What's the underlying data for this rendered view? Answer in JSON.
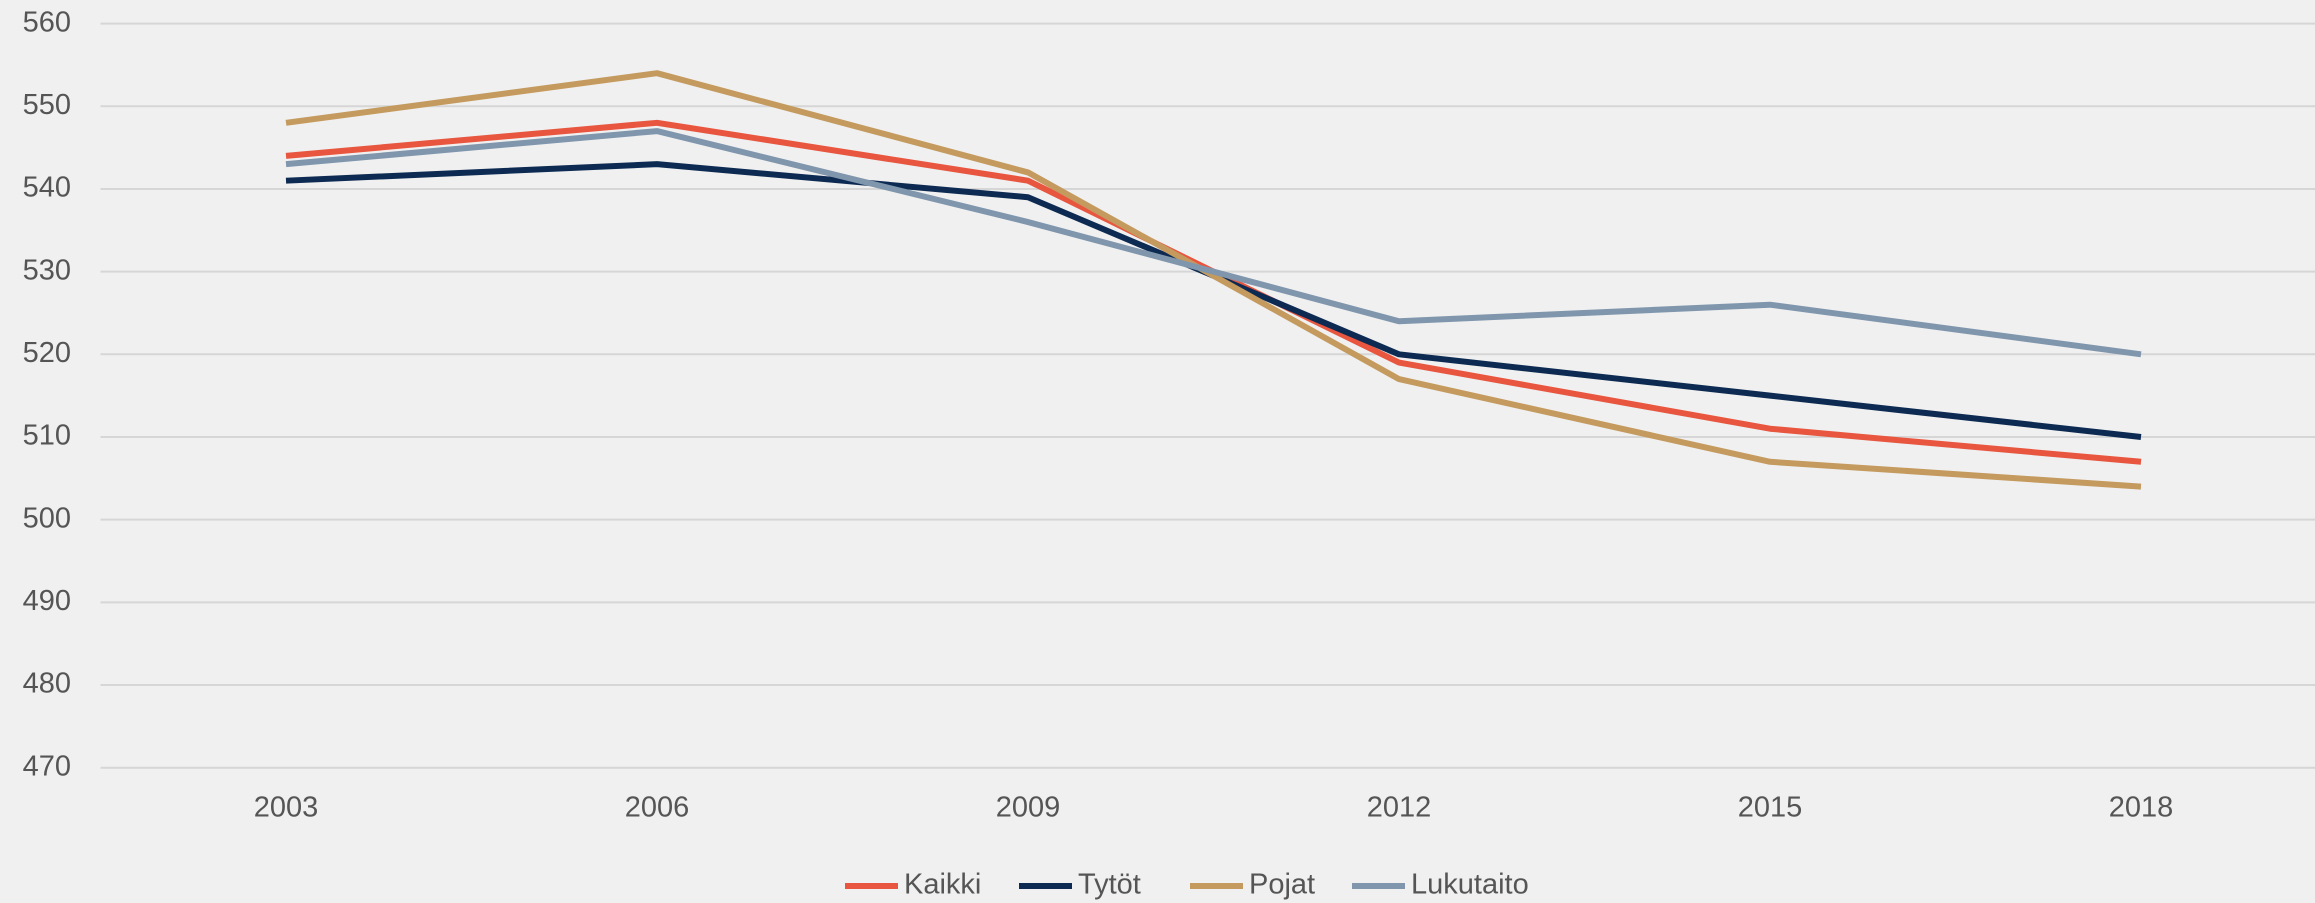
{
  "chart_data": {
    "type": "line",
    "categories": [
      "2003",
      "2006",
      "2009",
      "2012",
      "2015",
      "2018"
    ],
    "series": [
      {
        "name": "Kaikki",
        "color": "#e8563f",
        "values": [
          544,
          548,
          541,
          519,
          511,
          507
        ]
      },
      {
        "name": "Tytöt",
        "color": "#0d2b52",
        "values": [
          541,
          543,
          539,
          520,
          515,
          510
        ]
      },
      {
        "name": "Pojat",
        "color": "#c49a5e",
        "values": [
          548,
          554,
          542,
          517,
          507,
          504
        ]
      },
      {
        "name": "Lukutaito",
        "color": "#8096ad",
        "values": [
          543,
          547,
          536,
          524,
          526,
          520
        ]
      }
    ],
    "ylim": [
      470,
      560
    ],
    "yticks": [
      470,
      480,
      490,
      500,
      510,
      520,
      530,
      540,
      550,
      560
    ],
    "grid": true,
    "legend": "bottom"
  }
}
